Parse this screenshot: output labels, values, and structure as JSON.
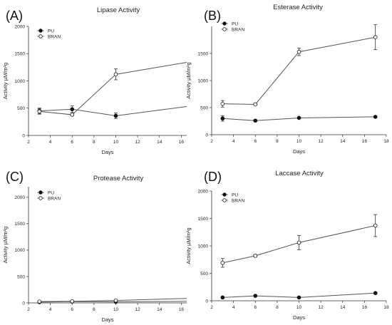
{
  "chart_data": [
    {
      "type": "line",
      "panel": "(A)",
      "title": "Lipase Activity",
      "xlabel": "Days",
      "ylabel": "Activity µM/m²g",
      "xlim": [
        2,
        16.5
      ],
      "ylim": [
        0,
        2000
      ],
      "xticks": [
        2,
        4,
        6,
        8,
        10,
        12,
        14,
        16
      ],
      "yticks": [
        0,
        500,
        1000,
        1500,
        2000
      ],
      "legend_position": "top-left",
      "series": [
        {
          "name": "PU",
          "marker": "filled",
          "x": [
            3,
            6,
            10,
            16.5
          ],
          "y": [
            450,
            480,
            360,
            530
          ],
          "err": [
            50,
            60,
            50,
            null
          ]
        },
        {
          "name": "BRAN",
          "marker": "open",
          "x": [
            3,
            6,
            10,
            16.5
          ],
          "y": [
            440,
            380,
            1120,
            1340
          ],
          "err": [
            50,
            20,
            100,
            null
          ]
        }
      ]
    },
    {
      "type": "line",
      "panel": "(B)",
      "title": "Esterase Activity",
      "xlabel": "Days",
      "ylabel": "Activity µM/m²g",
      "xlim": [
        2,
        18
      ],
      "ylim": [
        0,
        2000
      ],
      "xticks": [
        2,
        4,
        6,
        8,
        10,
        12,
        14,
        16,
        18
      ],
      "yticks": [
        0,
        500,
        1000,
        1500
      ],
      "legend_position": "top-left",
      "series": [
        {
          "name": "PU",
          "marker": "filled",
          "x": [
            3,
            6,
            10,
            17
          ],
          "y": [
            300,
            260,
            310,
            330
          ],
          "err": [
            50,
            15,
            15,
            15
          ]
        },
        {
          "name": "BRAN",
          "marker": "open",
          "x": [
            3,
            6,
            10,
            17
          ],
          "y": [
            570,
            560,
            1530,
            1800
          ],
          "err": [
            60,
            20,
            70,
            230
          ]
        }
      ]
    },
    {
      "type": "line",
      "panel": "(C)",
      "title": "Protease Activity",
      "xlabel": "Days",
      "ylabel": "Activity µM/m²g",
      "xlim": [
        2,
        16.5
      ],
      "ylim": [
        0,
        2200
      ],
      "xticks": [
        2,
        4,
        6,
        8,
        10,
        12,
        14,
        16
      ],
      "yticks": [
        0,
        500,
        1000,
        1500,
        2000
      ],
      "legend_position": "top-left",
      "series": [
        {
          "name": "PU",
          "marker": "filled",
          "x": [
            3,
            6,
            10,
            16.5
          ],
          "y": [
            15,
            25,
            20,
            30
          ],
          "err": [
            5,
            5,
            5,
            null
          ]
        },
        {
          "name": "BRAN",
          "marker": "open",
          "x": [
            3,
            6,
            10,
            16.5
          ],
          "y": [
            25,
            30,
            45,
            85
          ],
          "err": [
            5,
            5,
            8,
            null
          ]
        }
      ]
    },
    {
      "type": "line",
      "panel": "(D)",
      "title": "Laccase Activity",
      "xlabel": "Days",
      "ylabel": "Activity µM/m²g",
      "xlim": [
        2,
        18
      ],
      "ylim": [
        0,
        2000
      ],
      "xticks": [
        2,
        4,
        6,
        8,
        10,
        12,
        14,
        16,
        18
      ],
      "yticks": [
        0,
        500,
        1000,
        1500,
        2000
      ],
      "legend_position": "top-left",
      "series": [
        {
          "name": "PU",
          "marker": "filled",
          "x": [
            3,
            6,
            10,
            17
          ],
          "y": [
            60,
            90,
            60,
            140
          ],
          "err": [
            10,
            10,
            10,
            15
          ]
        },
        {
          "name": "BRAN",
          "marker": "open",
          "x": [
            3,
            6,
            10,
            17
          ],
          "y": [
            690,
            820,
            1060,
            1370
          ],
          "err": [
            80,
            20,
            130,
            200
          ]
        }
      ]
    }
  ]
}
